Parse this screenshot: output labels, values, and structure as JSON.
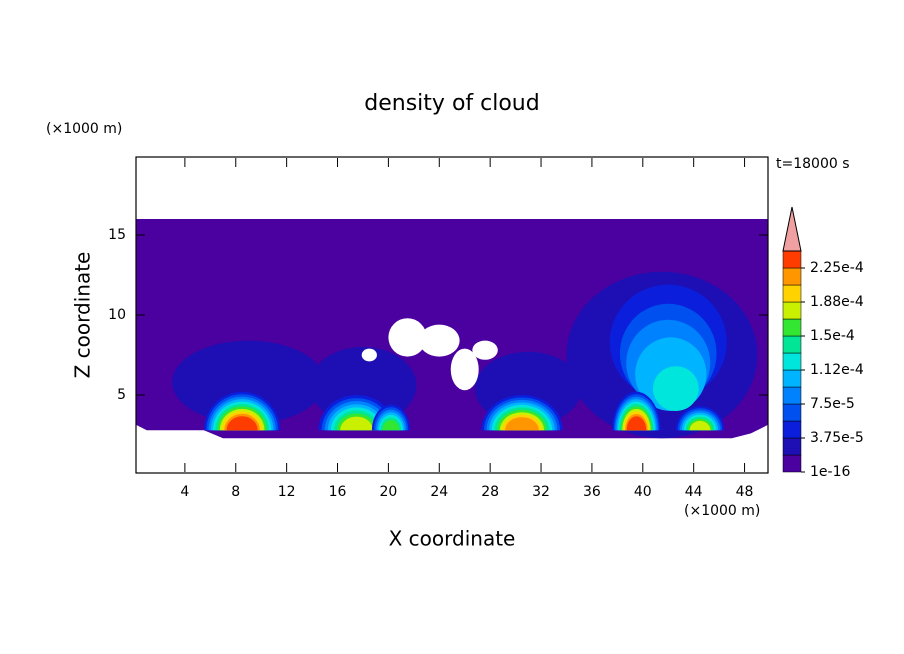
{
  "chart_data": {
    "type": "contour",
    "title": "density of cloud",
    "xlabel": "X coordinate",
    "ylabel": "Z coordinate",
    "x_unit": "(×1000 m)",
    "y_unit": "(×1000 m)",
    "annotation": "t=18000 s",
    "xlim": [
      0,
      50
    ],
    "xticks": [
      4,
      8,
      12,
      16,
      20,
      24,
      28,
      32,
      36,
      40,
      44,
      48
    ],
    "ylim": [
      0,
      20
    ],
    "yticks": [
      5,
      10,
      15
    ],
    "colorbar": {
      "levels": [
        1e-16,
        1.875e-05,
        3.75e-05,
        5.625e-05,
        7.5e-05,
        9.375e-05,
        0.0001125,
        0.00013125,
        0.00015,
        0.00016875,
        0.0001875,
        0.00020625,
        0.000225,
        0.00024375
      ],
      "colors": [
        "#4b00a0",
        "#1e0fb4",
        "#0a1edc",
        "#0050f0",
        "#0082ff",
        "#00b4ff",
        "#00e6dc",
        "#00e696",
        "#32e632",
        "#c8f000",
        "#ffd200",
        "#ff9600",
        "#ff3c00"
      ],
      "extend_color": "#f0a0a0",
      "ticks": [
        1e-16,
        {
          "value": 3.75e-05,
          "label": "3.75e-5"
        },
        {
          "value": 7.5e-05,
          "label": "7.5e-5"
        },
        {
          "value": 0.0001125,
          "label": "1.12e-4"
        },
        {
          "value": 0.00015,
          "label": "1.5e-4"
        },
        {
          "value": 0.0001875,
          "label": "1.88e-4"
        },
        {
          "value": 0.000225,
          "label": "2.25e-4"
        }
      ]
    }
  }
}
